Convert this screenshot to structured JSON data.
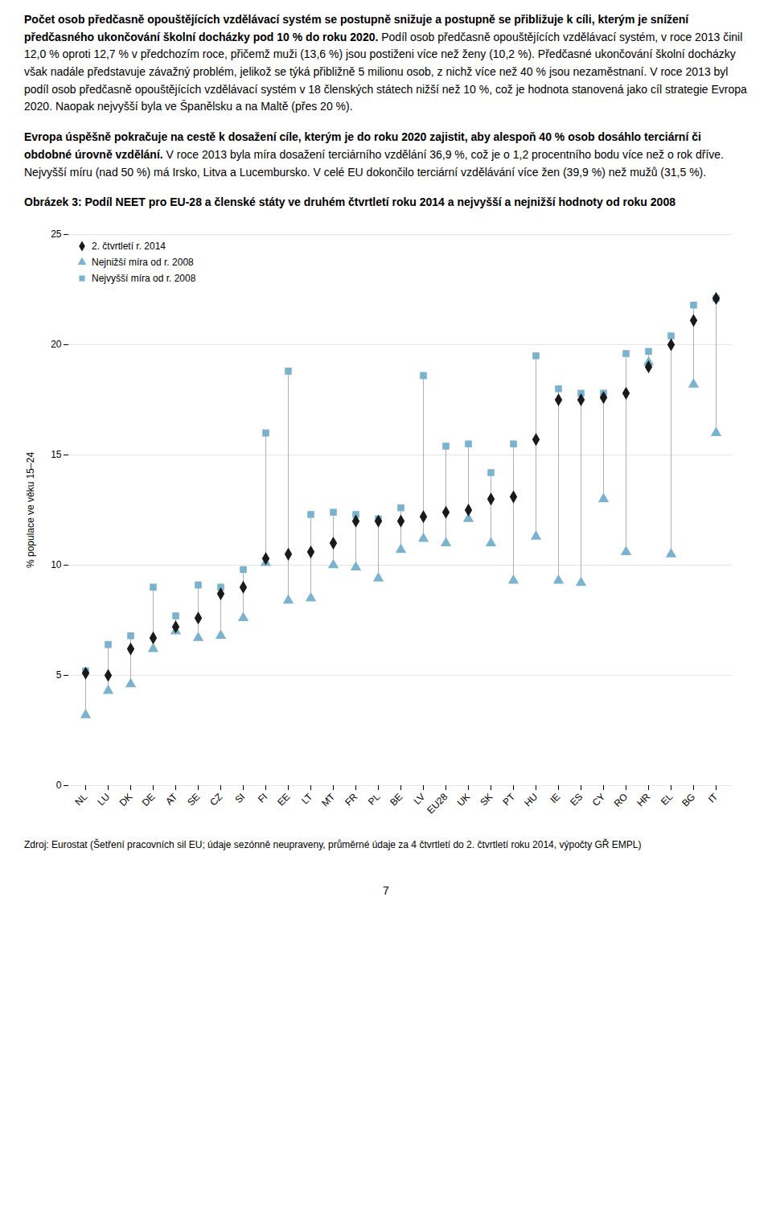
{
  "chart_data": {
    "type": "dumbbell",
    "paragraphs": [
      [
        "Počet osob předčasně opouštějících vzdělávací systém se postupně snižuje a postupně se přibližuje k cíli, kterým je snížení předčasného ukončování školní docházky pod 10 % do roku 2020.",
        "Podíl osob předčasně opouštějících vzdělávací systém, v roce 2013 činil 12,0 % oproti 12,7 % v předchozím roce, přičemž muži (13,6 %) jsou postiženi více než ženy (10,2 %). Předčasné ukončování školní docházky však nadále představuje závažný problém, jelikož se týká přibližně 5 milionu osob, z nichž více než 40 % jsou nezaměstnaní. V roce 2013 byl podíl osob předčasně opouštějících vzdělávací systém v 18 členských státech nižší než 10 %, což je hodnota stanovená jako cíl strategie Evropa 2020. Naopak nejvyšší byla ve Španělsku a na Maltě (přes 20 %)."
      ],
      [
        "Evropa úspěšně pokračuje na cestě k dosažení cíle, kterým je do roku 2020 zajistit, aby alespoň 40 % osob dosáhlo terciární či obdobné úrovně vzdělání.",
        "V roce 2013 byla míra dosažení  terciárního vzdělání 36,9 %, což je o 1,2 procentního bodu více než o rok dříve. Nejvyšší míru (nad 50 %) má Irsko, Litva a Lucembursko. V celé EU dokončilo terciární vzdělávání více žen (39,9 %) než mužů (31,5 %)."
      ]
    ],
    "title": "Obrázek 3: Podíl NEET pro EU-28 a členské státy ve druhém čtvrtletí roku 2014 a nejvyšší a nejnižší hodnoty od roku 2008",
    "ylabel": "% populace ve věku 15–24",
    "categories": [
      "NL",
      "LU",
      "DK",
      "DE",
      "AT",
      "SE",
      "CZ",
      "SI",
      "FI",
      "EE",
      "LT",
      "MT",
      "FR",
      "PL",
      "BE",
      "LV",
      "EU28",
      "UK",
      "SK",
      "PT",
      "HU",
      "IE",
      "ES",
      "CY",
      "RO",
      "HR",
      "EL",
      "BG",
      "IT"
    ],
    "series": [
      {
        "name": "2. čtvrtletí r. 2014",
        "color": "#1a1a1a",
        "marker": "diamond",
        "values": [
          5.1,
          5.0,
          6.2,
          6.7,
          7.2,
          7.6,
          8.7,
          9.0,
          10.3,
          10.5,
          10.6,
          11.0,
          12.0,
          12.0,
          12.0,
          12.2,
          12.4,
          12.5,
          13.0,
          13.1,
          15.7,
          17.5,
          17.5,
          17.6,
          17.8,
          19.0,
          20.0,
          21.1,
          22.1
        ]
      },
      {
        "name": "Nejnižší míra od r. 2008",
        "color": "#7ab3d0",
        "marker": "triangle",
        "values": [
          3.2,
          4.3,
          4.6,
          6.2,
          7.0,
          6.7,
          6.8,
          7.6,
          10.1,
          8.4,
          8.5,
          10.0,
          9.9,
          9.4,
          10.7,
          11.2,
          11.0,
          12.1,
          11.0,
          9.3,
          11.3,
          9.3,
          9.2,
          13.0,
          10.6,
          19.2,
          10.5,
          18.2,
          16.0
        ]
      },
      {
        "name": "Nejvyšší míra od r. 2008",
        "color": "#7ab3d0",
        "marker": "square",
        "values": [
          5.2,
          6.4,
          6.8,
          9.0,
          7.7,
          9.1,
          9.0,
          9.8,
          16.0,
          18.8,
          12.3,
          12.4,
          12.3,
          12.1,
          12.6,
          18.6,
          15.4,
          15.5,
          14.2,
          15.5,
          19.5,
          18.0,
          17.8,
          17.8,
          19.6,
          19.7,
          20.4,
          21.8,
          22.1
        ]
      }
    ],
    "ylim": [
      0,
      25
    ],
    "yticks": [
      0,
      5,
      10,
      15,
      20,
      25
    ],
    "grid": true,
    "legend": "upper left",
    "source": "Zdroj: Eurostat (Šetření pracovních sil EU; údaje sezónně neupraveny, průměrné údaje za 4 čtvrtletí do 2. čtvrtletí roku 2014, výpočty GŘ EMPL)",
    "page_number": "7"
  }
}
